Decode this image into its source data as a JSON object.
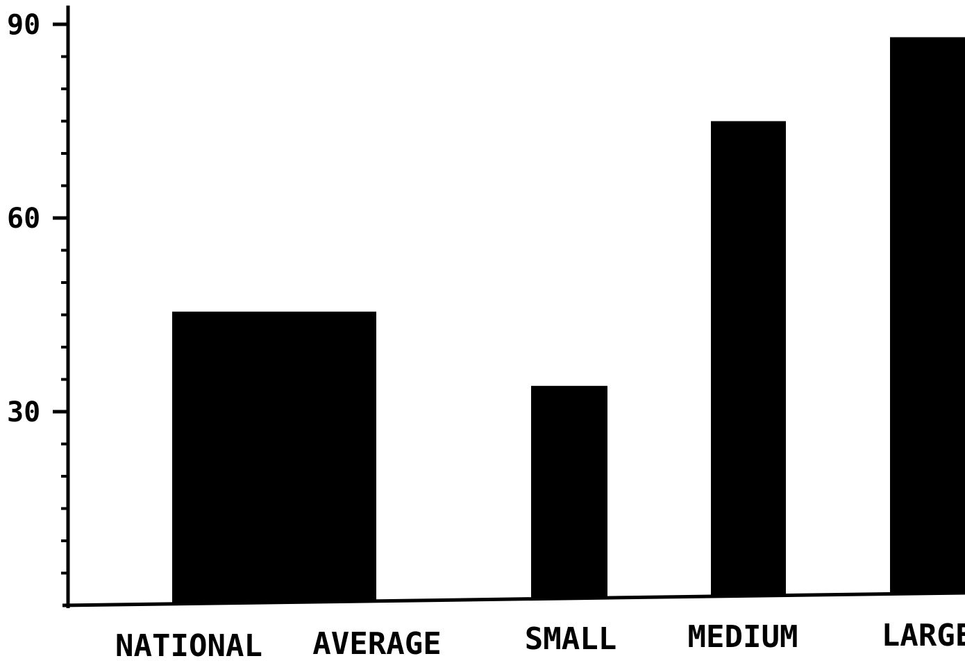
{
  "chart_data": {
    "type": "bar",
    "categories": [
      "NATIONAL AVERAGE",
      "SMALL",
      "MEDIUM",
      "LARGE"
    ],
    "category_label_parts": [
      [
        "NATIONAL",
        "AVERAGE"
      ],
      [
        "SMALL"
      ],
      [
        "MEDIUM"
      ],
      [
        "LARGE"
      ]
    ],
    "values": [
      45.5,
      34,
      75,
      88
    ],
    "ylim": [
      0,
      90
    ],
    "yticks_labeled": [
      "30",
      "60",
      "90"
    ],
    "ytick_values": [
      30,
      60,
      90
    ],
    "minor_tick_step": 5,
    "title": "",
    "xlabel": "",
    "ylabel": "",
    "grid": false,
    "colors": {
      "bar": "#000000",
      "axis": "#000000",
      "background": "#ffffff"
    }
  }
}
